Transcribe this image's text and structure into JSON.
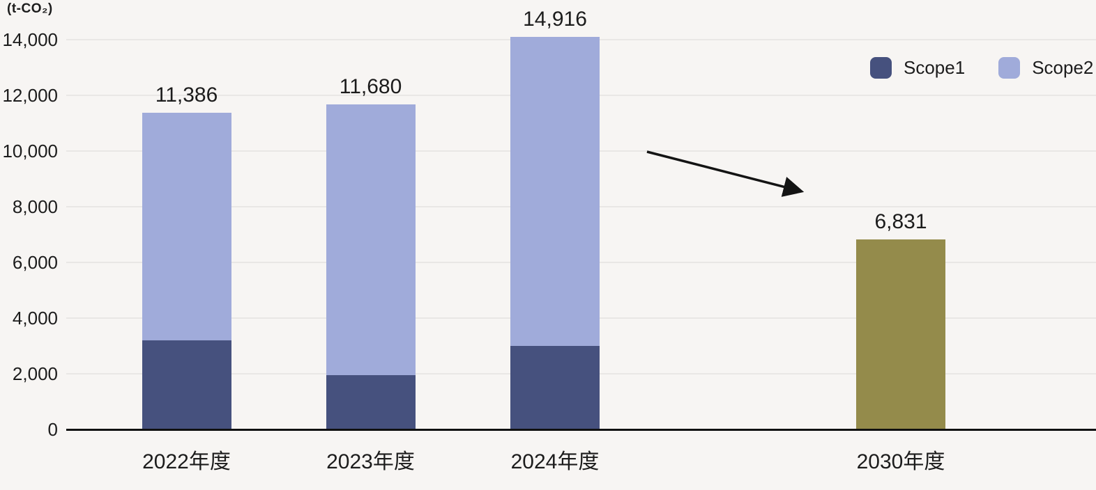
{
  "unit_label": "(t-CO₂)",
  "legend": [
    {
      "label": "Scope1",
      "color": "#46517e"
    },
    {
      "label": "Scope2",
      "color": "#a0abda"
    }
  ],
  "colors": {
    "scope1": "#46517e",
    "scope2": "#a0abda",
    "target": "#948b4b",
    "background": "#f7f5f3",
    "gridline": "#e9e7e5",
    "axis": "#111111",
    "arrow": "#141414",
    "text": "#1c1c1c"
  },
  "chart_data": {
    "type": "bar",
    "stacked": true,
    "unit": "t-CO₂",
    "categories": [
      "2022年度",
      "2023年度",
      "2024年度",
      "2030年度"
    ],
    "totals": [
      11386,
      11680,
      14916,
      6831
    ],
    "total_labels": [
      "11,386",
      "11,680",
      "14,916",
      "6,831"
    ],
    "series": [
      {
        "name": "Scope1",
        "color": "#46517e",
        "values": [
          3200,
          1950,
          3000,
          null
        ]
      },
      {
        "name": "Scope2",
        "color": "#a0abda",
        "values": [
          8186,
          9730,
          11916,
          null
        ]
      }
    ],
    "target_bar": {
      "category": "2030年度",
      "value": 6831,
      "label": "6,831",
      "color": "#948b4b"
    },
    "yticks": [
      "14,000",
      "12,000",
      "10,000",
      "8,000",
      "6,000",
      "4,000",
      "2,000",
      "0"
    ],
    "ytick_values": [
      14000,
      12000,
      10000,
      8000,
      6000,
      4000,
      2000,
      0
    ],
    "ylim": [
      0,
      14000
    ],
    "grid": true,
    "legend_position": "top-right",
    "annotations": [
      {
        "type": "arrow",
        "from_category": "2024年度",
        "to_category": "2030年度"
      }
    ]
  }
}
